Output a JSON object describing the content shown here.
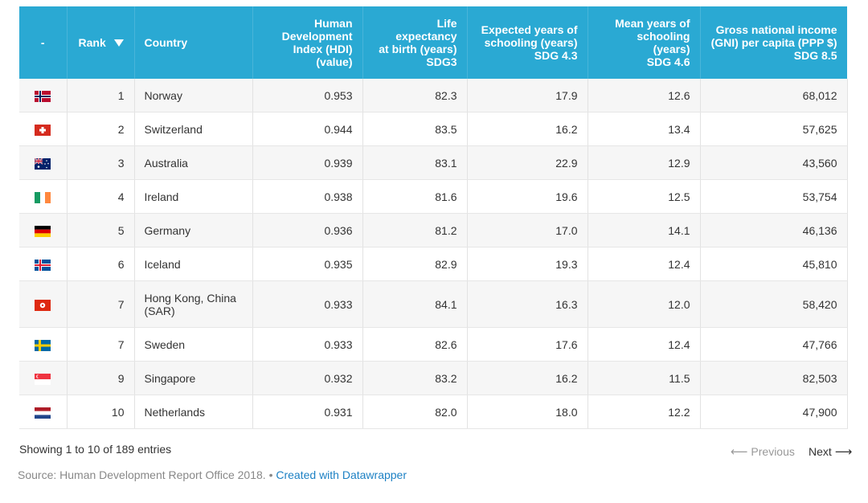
{
  "headers": {
    "flag": "-",
    "rank": "Rank",
    "country": "Country",
    "hdi": [
      "Human",
      "Development",
      "Index (HDI)",
      "(value)"
    ],
    "life": [
      "Life expectancy",
      "at birth (years)",
      "SDG3"
    ],
    "expected": [
      "Expected years of",
      "schooling (years)",
      "SDG 4.3"
    ],
    "mean": [
      "Mean years of",
      "schooling (years)",
      "SDG 4.6"
    ],
    "gni": [
      "Gross national income",
      "(GNI) per capita (PPP $)",
      "SDG 8.5"
    ]
  },
  "rows": [
    {
      "flag": "norway-flag-icon",
      "rank": "1",
      "country": [
        "Norway"
      ],
      "hdi": "0.953",
      "life": "82.3",
      "expected": "17.9",
      "mean": "12.6",
      "gni": "68,012"
    },
    {
      "flag": "switzerland-flag-icon",
      "rank": "2",
      "country": [
        "Switzerland"
      ],
      "hdi": "0.944",
      "life": "83.5",
      "expected": "16.2",
      "mean": "13.4",
      "gni": "57,625"
    },
    {
      "flag": "australia-flag-icon",
      "rank": "3",
      "country": [
        "Australia"
      ],
      "hdi": "0.939",
      "life": "83.1",
      "expected": "22.9",
      "mean": "12.9",
      "gni": "43,560"
    },
    {
      "flag": "ireland-flag-icon",
      "rank": "4",
      "country": [
        "Ireland"
      ],
      "hdi": "0.938",
      "life": "81.6",
      "expected": "19.6",
      "mean": "12.5",
      "gni": "53,754"
    },
    {
      "flag": "germany-flag-icon",
      "rank": "5",
      "country": [
        "Germany"
      ],
      "hdi": "0.936",
      "life": "81.2",
      "expected": "17.0",
      "mean": "14.1",
      "gni": "46,136"
    },
    {
      "flag": "iceland-flag-icon",
      "rank": "6",
      "country": [
        "Iceland"
      ],
      "hdi": "0.935",
      "life": "82.9",
      "expected": "19.3",
      "mean": "12.4",
      "gni": "45,810"
    },
    {
      "flag": "hong-kong-flag-icon",
      "rank": "7",
      "country": [
        "Hong Kong, China",
        "(SAR)"
      ],
      "hdi": "0.933",
      "life": "84.1",
      "expected": "16.3",
      "mean": "12.0",
      "gni": "58,420"
    },
    {
      "flag": "sweden-flag-icon",
      "rank": "7",
      "country": [
        "Sweden"
      ],
      "hdi": "0.933",
      "life": "82.6",
      "expected": "17.6",
      "mean": "12.4",
      "gni": "47,766"
    },
    {
      "flag": "singapore-flag-icon",
      "rank": "9",
      "country": [
        "Singapore"
      ],
      "hdi": "0.932",
      "life": "83.2",
      "expected": "16.2",
      "mean": "11.5",
      "gni": "82,503"
    },
    {
      "flag": "netherlands-flag-icon",
      "rank": "10",
      "country": [
        "Netherlands"
      ],
      "hdi": "0.931",
      "life": "82.0",
      "expected": "18.0",
      "mean": "12.2",
      "gni": "47,900"
    }
  ],
  "footer": {
    "info": "Showing 1 to 10 of 189 entries",
    "previous": "Previous",
    "next": "Next",
    "source": "Source: Human Development Report Office 2018.",
    "separator": " • ",
    "credit": "Created with Datawrapper"
  },
  "colors": {
    "header_bg": "#2aa9d3",
    "link": "#1d81c4"
  }
}
